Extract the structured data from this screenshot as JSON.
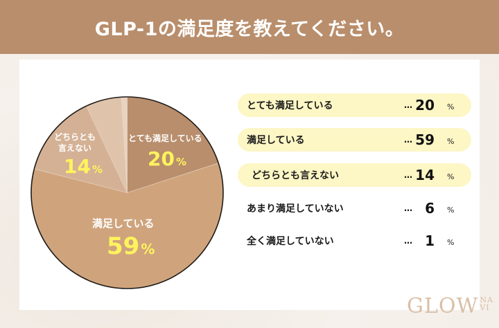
{
  "header": {
    "title": "GLP-1の満足度を教えてください。"
  },
  "chart_data": {
    "type": "pie",
    "title": "GLP-1の満足度を教えてください。",
    "categories": [
      "とても満足している",
      "満足している",
      "どちらとも言えない",
      "あまり満足していない",
      "全く満足していない"
    ],
    "values": [
      20,
      59,
      14,
      6,
      1
    ],
    "unit": "%",
    "colors": [
      "#b98e6c",
      "#cfa47d",
      "#d4b195",
      "#dfc3ab",
      "#e8d3c0"
    ],
    "start_angle_deg": 0,
    "direction": "clockwise"
  },
  "pie_labels": {
    "very_satisfied": {
      "label": "とても満足している",
      "value": "20",
      "unit": "%"
    },
    "satisfied": {
      "label": "満足している",
      "value": "59",
      "unit": "%"
    },
    "neutral": {
      "label_line1": "どちらとも",
      "label_line2": "言えない",
      "value": "14",
      "unit": "%"
    }
  },
  "legend": {
    "dots": "…",
    "unit": "%",
    "items": [
      {
        "label": "とても満足している",
        "value": "20",
        "highlight": true
      },
      {
        "label": "満足している",
        "value": "59",
        "highlight": true
      },
      {
        "label": "どちらとも言えない",
        "value": "14",
        "highlight": true
      },
      {
        "label": "あまり満足していない",
        "value": "6",
        "highlight": false
      },
      {
        "label": "全く満足していない",
        "value": "1",
        "highlight": false
      }
    ]
  },
  "logo": {
    "main": "GLOW",
    "small_top": "NA",
    "small_bottom": "VI"
  }
}
